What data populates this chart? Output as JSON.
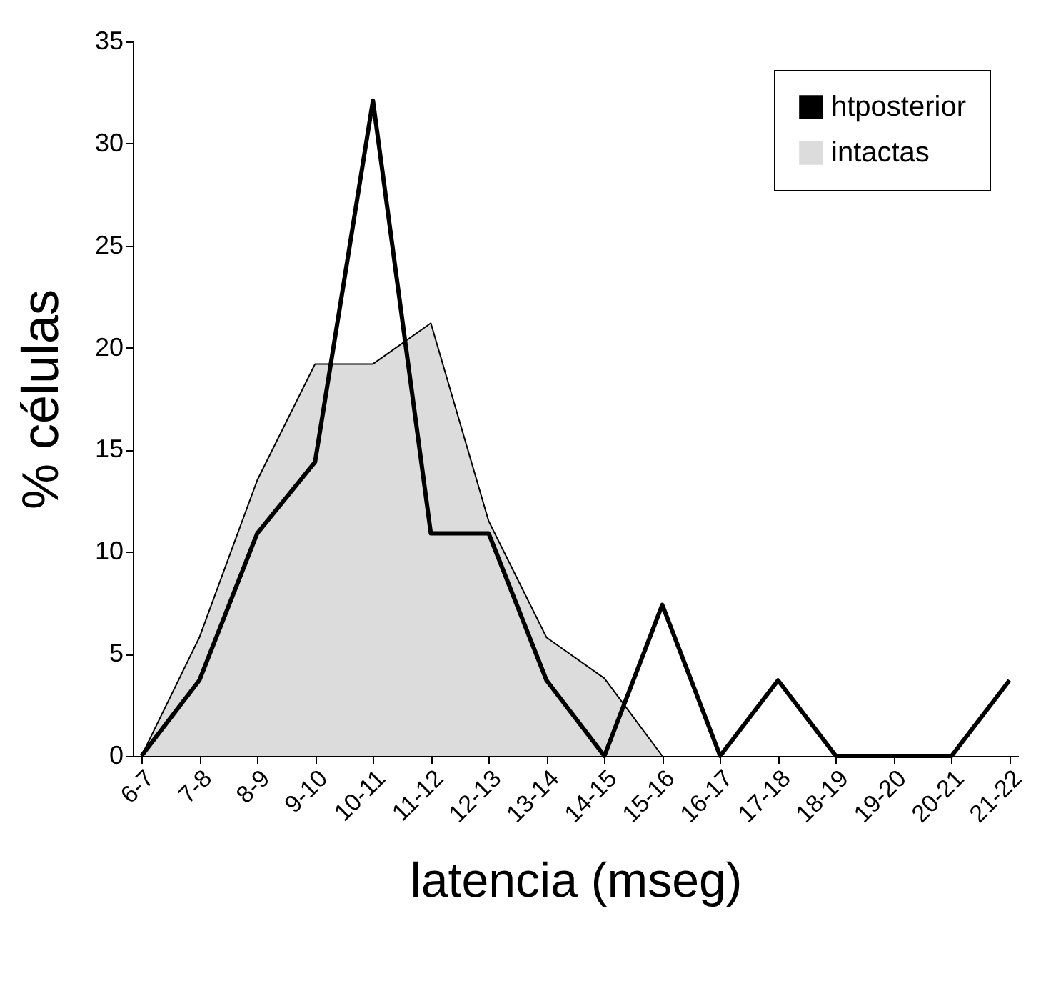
{
  "chart_data": {
    "type": "line",
    "xlabel": "latencia (mseg)",
    "ylabel": "% células",
    "categories": [
      "6-7",
      "7-8",
      "8-9",
      "9-10",
      "10-11",
      "11-12",
      "12-13",
      "13-14",
      "14-15",
      "15-16",
      "16-17",
      "17-18",
      "18-19",
      "19-20",
      "20-21",
      "21-22"
    ],
    "series": [
      {
        "name": "htposterior",
        "color": "#000000",
        "values": [
          0,
          3.7,
          10.9,
          14.4,
          32.1,
          10.9,
          10.9,
          3.7,
          0,
          7.4,
          0,
          3.7,
          0,
          0,
          0,
          3.7
        ]
      },
      {
        "name": "intactas",
        "type": "area",
        "color": "#dcdcdc",
        "values": [
          0,
          5.8,
          13.5,
          19.2,
          19.2,
          21.2,
          11.5,
          5.8,
          3.8,
          0,
          null,
          null,
          null,
          null,
          null,
          null
        ]
      }
    ],
    "ylim": [
      0,
      35
    ],
    "yticks": [
      0,
      5,
      10,
      15,
      20,
      25,
      30,
      35
    ],
    "grid": false,
    "legend": "top right",
    "marker": "none",
    "line_style": "solid"
  }
}
